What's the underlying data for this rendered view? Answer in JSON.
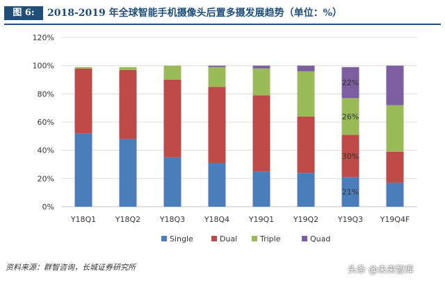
{
  "header": {
    "figure_label": "图 6:",
    "title": "2018-2019 年全球智能手机摄像头后置多摄发展趋势（单位：%）"
  },
  "footer": {
    "source": "资料来源：群智咨询，长城证券研究所",
    "watermark": "头条 @未来智库"
  },
  "colors": {
    "Single": "#4a7ebb",
    "Dual": "#be4b48",
    "Triple": "#9bbb59",
    "Quad": "#7d5fa0",
    "grid": "#d9d9d9",
    "title": "#1f4e79"
  },
  "chart_data": {
    "type": "bar",
    "stacked": true,
    "categories": [
      "Y18Q1",
      "Y18Q2",
      "Y18Q3",
      "Y18Q4",
      "Y19Q1",
      "Y19Q2",
      "Y19Q3",
      "Y19Q4F"
    ],
    "series": [
      {
        "name": "Single",
        "values": [
          52,
          48,
          35,
          31,
          25,
          24,
          21,
          17
        ]
      },
      {
        "name": "Dual",
        "values": [
          46,
          49,
          55,
          54,
          54,
          40,
          30,
          22
        ]
      },
      {
        "name": "Triple",
        "values": [
          1,
          2,
          10,
          14,
          19,
          32,
          26,
          33
        ]
      },
      {
        "name": "Quad",
        "values": [
          0,
          0,
          0,
          1,
          2,
          4,
          22,
          28
        ]
      }
    ],
    "data_labels": [
      {
        "category": "Y19Q3",
        "series": "Single",
        "text": "21%"
      },
      {
        "category": "Y19Q3",
        "series": "Dual",
        "text": "30%"
      },
      {
        "category": "Y19Q3",
        "series": "Triple",
        "text": "26%"
      },
      {
        "category": "Y19Q3",
        "series": "Quad",
        "text": "22%"
      }
    ],
    "y_ticks": [
      "0%",
      "20%",
      "40%",
      "60%",
      "80%",
      "100%",
      "120%"
    ],
    "ylim": [
      0,
      120
    ],
    "grid": true,
    "legend_position": "bottom-center",
    "title": "",
    "xlabel": "",
    "ylabel": ""
  }
}
